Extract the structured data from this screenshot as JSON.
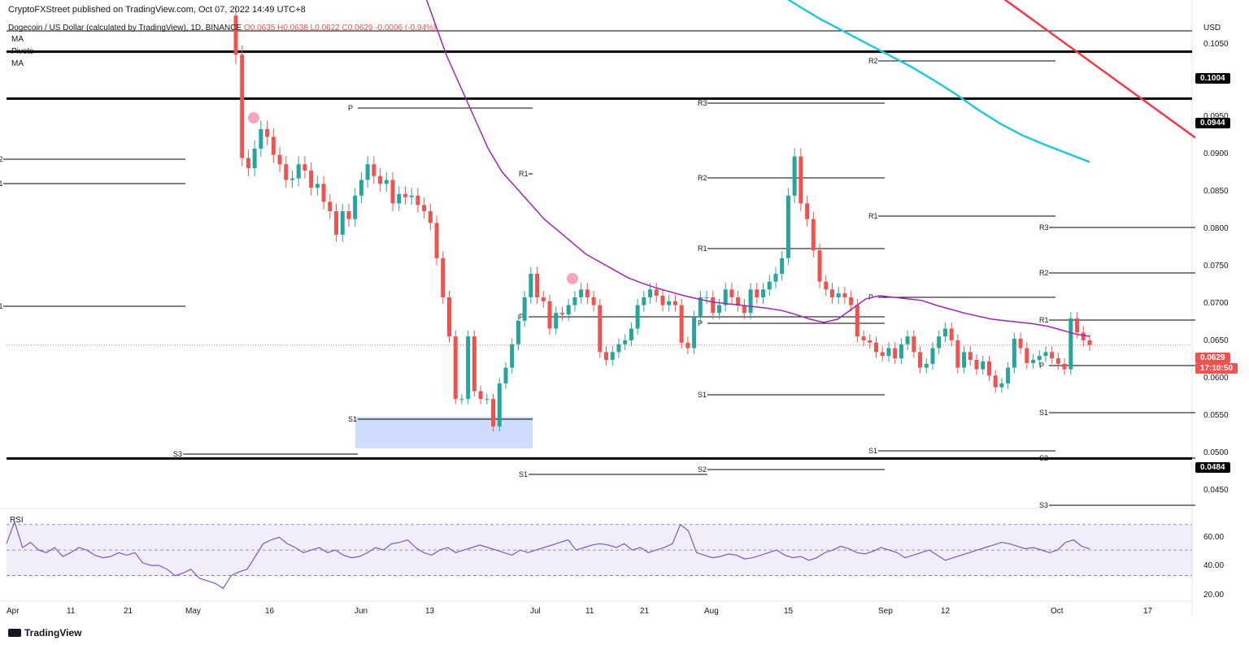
{
  "header": {
    "published": "CryptoFXStreet published on TradingView.com, Oct 07, 2022 14:49 UTC+8"
  },
  "legend": {
    "title": "Dogecoin / US Dollar (calculated by TradingView), 1D, BINANCE",
    "ohlc": "O0.0635 H0.0638 L0.0622 C0.0629 -0.0006 (-0.94%)",
    "ma1": "MA",
    "pivots": "Pivots",
    "ma2": "MA"
  },
  "price_axis": {
    "currency": "USD",
    "ticks": [
      "0.1050",
      "0.1000",
      "0.0950",
      "0.0900",
      "0.0850",
      "0.0800",
      "0.0750",
      "0.0700",
      "0.0650",
      "0.0600",
      "0.0550",
      "0.0500",
      "0.0450"
    ],
    "level_tags": [
      "0.1004",
      "0.0944",
      "0.0484"
    ],
    "current_price": "0.0629",
    "countdown": "17:10:50"
  },
  "rsi": {
    "label": "RSI",
    "ticks": [
      "60.00",
      "40.00",
      "20.00"
    ]
  },
  "time_axis": {
    "labels": [
      "Apr",
      "11",
      "21",
      "May",
      "16",
      "Jun",
      "13",
      "Jul",
      "11",
      "21",
      "Aug",
      "15",
      "Sep",
      "12",
      "Oct",
      "17"
    ]
  },
  "footer": {
    "brand": "TradingView"
  },
  "colors": {
    "up": "#26a69a",
    "down": "#ef5350",
    "ma50": "#9c27b0",
    "ma200": "#26c6da",
    "trend": "#f23645"
  },
  "chart_data": {
    "type": "candlestick",
    "symbol": "DOGE/USD",
    "timeframe": "1D",
    "y_range": [
      0.042,
      0.107
    ],
    "horizontal_levels": [
      0.1004,
      0.0944,
      0.0484
    ],
    "pivot_labels": [
      "P",
      "R1",
      "R2",
      "R3",
      "S1",
      "S2",
      "S3"
    ],
    "demand_zone": [
      0.0497,
      0.0537
    ],
    "closes": [
      0.1,
      0.0868,
      0.0855,
      0.088,
      0.0905,
      0.0895,
      0.0872,
      0.086,
      0.084,
      0.0842,
      0.086,
      0.0852,
      0.083,
      0.0835,
      0.0812,
      0.08,
      0.077,
      0.08,
      0.079,
      0.082,
      0.084,
      0.086,
      0.0845,
      0.0835,
      0.084,
      0.081,
      0.0822,
      0.0818,
      0.082,
      0.0808,
      0.08,
      0.0785,
      0.074,
      0.069,
      0.064,
      0.056,
      0.056,
      0.064,
      0.057,
      0.056,
      0.056,
      0.0525,
      0.058,
      0.06,
      0.063,
      0.066,
      0.069,
      0.072,
      0.069,
      0.0685,
      0.065,
      0.067,
      0.0668,
      0.068,
      0.069,
      0.07,
      0.069,
      0.068,
      0.062,
      0.061,
      0.062,
      0.063,
      0.0635,
      0.065,
      0.068,
      0.069,
      0.07,
      0.0692,
      0.068,
      0.0685,
      0.068,
      0.0632,
      0.0625,
      0.0665,
      0.069,
      0.069,
      0.067,
      0.068,
      0.07,
      0.069,
      0.068,
      0.067,
      0.07,
      0.069,
      0.07,
      0.071,
      0.072,
      0.074,
      0.082,
      0.087,
      0.081,
      0.079,
      0.075,
      0.071,
      0.07,
      0.069,
      0.0695,
      0.069,
      0.068,
      0.064,
      0.0635,
      0.0632,
      0.062,
      0.0615,
      0.0625,
      0.0612,
      0.063,
      0.064,
      0.062,
      0.06,
      0.0605,
      0.0625,
      0.064,
      0.065,
      0.0635,
      0.06,
      0.062,
      0.061,
      0.0598,
      0.0608,
      0.059,
      0.0575,
      0.058,
      0.06,
      0.0637,
      0.0625,
      0.0606,
      0.061,
      0.0615,
      0.062,
      0.0612,
      0.0605,
      0.0598,
      0.0663,
      0.0645,
      0.0635,
      0.0629
    ],
    "ma50": [
      0.12,
      0.115,
      0.11,
      0.105,
      0.1,
      0.096,
      0.092,
      0.088,
      0.085,
      0.083,
      0.081,
      0.079,
      0.0775,
      0.076,
      0.0745,
      0.0735,
      0.0725,
      0.0715,
      0.0708,
      0.0702,
      0.0697,
      0.0692,
      0.0688,
      0.0684,
      0.0682,
      0.068,
      0.0678,
      0.0676,
      0.0673,
      0.0668,
      0.0662,
      0.0658,
      0.0662,
      0.0675,
      0.0688,
      0.0692,
      0.069,
      0.0688,
      0.0686,
      0.068,
      0.0675,
      0.067,
      0.0666,
      0.0662,
      0.066,
      0.0658,
      0.0656,
      0.0653,
      0.0648,
      0.0643,
      0.064
    ],
    "ma200": [
      0.112,
      0.11,
      0.108,
      0.1062,
      0.1045,
      0.103,
      0.1015,
      0.1,
      0.0985,
      0.0968,
      0.095,
      0.093,
      0.0912,
      0.0897,
      0.0885,
      0.0874,
      0.0863
    ],
    "trendline": [
      0.112,
      0.0894
    ],
    "rsi": [
      55,
      72,
      52,
      56,
      50,
      48,
      52,
      45,
      48,
      52,
      50,
      46,
      44,
      45,
      48,
      46,
      48,
      40,
      38,
      38,
      35,
      30,
      32,
      35,
      28,
      26,
      24,
      20,
      30,
      33,
      35,
      45,
      55,
      58,
      60,
      55,
      52,
      48,
      50,
      52,
      48,
      50,
      46,
      44,
      45,
      48,
      52,
      50,
      55,
      56,
      58,
      52,
      48,
      46,
      50,
      52,
      48,
      50,
      52,
      54,
      52,
      50,
      48,
      46,
      50,
      48,
      50,
      52,
      54,
      56,
      58,
      50,
      52,
      54,
      55,
      54,
      52,
      55,
      50,
      52,
      48,
      50,
      52,
      55,
      70,
      65,
      48,
      46,
      44,
      45,
      47,
      46,
      43,
      44,
      46,
      48,
      50,
      46,
      44,
      45,
      42,
      44,
      48,
      50,
      53,
      51,
      48,
      47,
      49,
      52,
      50,
      48,
      44,
      46,
      48,
      50,
      46,
      42,
      44,
      46,
      48,
      50,
      52,
      54,
      56,
      55,
      53,
      51,
      52,
      50,
      48,
      50,
      56,
      58,
      53,
      51
    ]
  }
}
